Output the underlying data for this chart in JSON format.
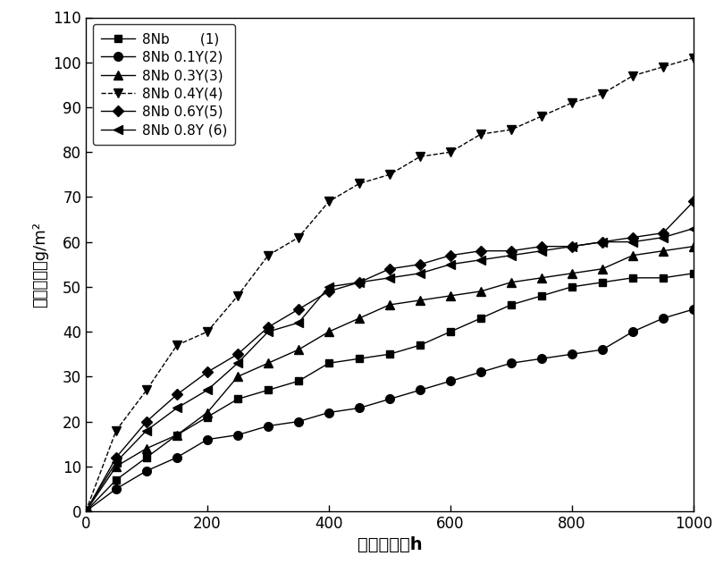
{
  "title": "",
  "xlabel": "氧化时间，h",
  "ylabel": "氧化増重，g/m²",
  "xlim": [
    0,
    1000
  ],
  "ylim": [
    0,
    110
  ],
  "xticks": [
    0,
    200,
    400,
    600,
    800,
    1000
  ],
  "yticks": [
    0,
    10,
    20,
    30,
    40,
    50,
    60,
    70,
    80,
    90,
    100,
    110
  ],
  "series": [
    {
      "label": "8Nb       (1)",
      "marker": "s",
      "linestyle": "-",
      "color": "#000000",
      "x": [
        0,
        50,
        100,
        150,
        200,
        250,
        300,
        350,
        400,
        450,
        500,
        550,
        600,
        650,
        700,
        750,
        800,
        850,
        900,
        950,
        1000
      ],
      "y": [
        0,
        7,
        12,
        17,
        21,
        25,
        27,
        29,
        33,
        34,
        35,
        37,
        40,
        43,
        46,
        48,
        50,
        51,
        52,
        52,
        53
      ]
    },
    {
      "label": "8Nb 0.1Y(2)",
      "marker": "o",
      "linestyle": "-",
      "color": "#000000",
      "x": [
        0,
        50,
        100,
        150,
        200,
        250,
        300,
        350,
        400,
        450,
        500,
        550,
        600,
        650,
        700,
        750,
        800,
        850,
        900,
        950,
        1000
      ],
      "y": [
        0,
        5,
        9,
        12,
        16,
        17,
        19,
        20,
        22,
        23,
        25,
        27,
        29,
        31,
        33,
        34,
        35,
        36,
        40,
        43,
        45
      ]
    },
    {
      "label": "8Nb 0.3Y(3)",
      "marker": "^",
      "linestyle": "-",
      "color": "#000000",
      "x": [
        0,
        50,
        100,
        150,
        200,
        250,
        300,
        350,
        400,
        450,
        500,
        550,
        600,
        650,
        700,
        750,
        800,
        850,
        900,
        950,
        1000
      ],
      "y": [
        0,
        10,
        14,
        17,
        22,
        30,
        33,
        36,
        40,
        43,
        46,
        47,
        48,
        49,
        51,
        52,
        53,
        54,
        57,
        58,
        59
      ]
    },
    {
      "label": "8Nb 0.4Y(4)",
      "marker": "v",
      "linestyle": "--",
      "color": "#000000",
      "x": [
        0,
        50,
        100,
        150,
        200,
        250,
        300,
        350,
        400,
        450,
        500,
        550,
        600,
        650,
        700,
        750,
        800,
        850,
        900,
        950,
        1000
      ],
      "y": [
        0,
        18,
        27,
        37,
        40,
        48,
        57,
        61,
        69,
        73,
        75,
        79,
        80,
        84,
        85,
        88,
        91,
        93,
        97,
        99,
        101
      ]
    },
    {
      "label": "8Nb 0.6Y(5)",
      "marker": "D",
      "linestyle": "-",
      "color": "#000000",
      "x": [
        0,
        50,
        100,
        150,
        200,
        250,
        300,
        350,
        400,
        450,
        500,
        550,
        600,
        650,
        700,
        750,
        800,
        850,
        900,
        950,
        1000
      ],
      "y": [
        0,
        12,
        20,
        26,
        31,
        35,
        41,
        45,
        49,
        51,
        54,
        55,
        57,
        58,
        58,
        59,
        59,
        60,
        61,
        62,
        69
      ]
    },
    {
      "label": "8Nb 0.8Y (6)",
      "marker": "<",
      "linestyle": "-",
      "color": "#000000",
      "x": [
        0,
        50,
        100,
        150,
        200,
        250,
        300,
        350,
        400,
        450,
        500,
        550,
        600,
        650,
        700,
        750,
        800,
        850,
        900,
        950,
        1000
      ],
      "y": [
        0,
        11,
        18,
        23,
        27,
        33,
        40,
        42,
        50,
        51,
        52,
        53,
        55,
        56,
        57,
        58,
        59,
        60,
        60,
        61,
        63
      ]
    }
  ],
  "xlabel_bold": true,
  "xlabel_fontsize": 14,
  "ylabel_fontsize": 13,
  "tick_labelsize": 12,
  "legend_fontsize": 11,
  "figure_width": 8.0,
  "figure_height": 6.5,
  "dpi": 100
}
